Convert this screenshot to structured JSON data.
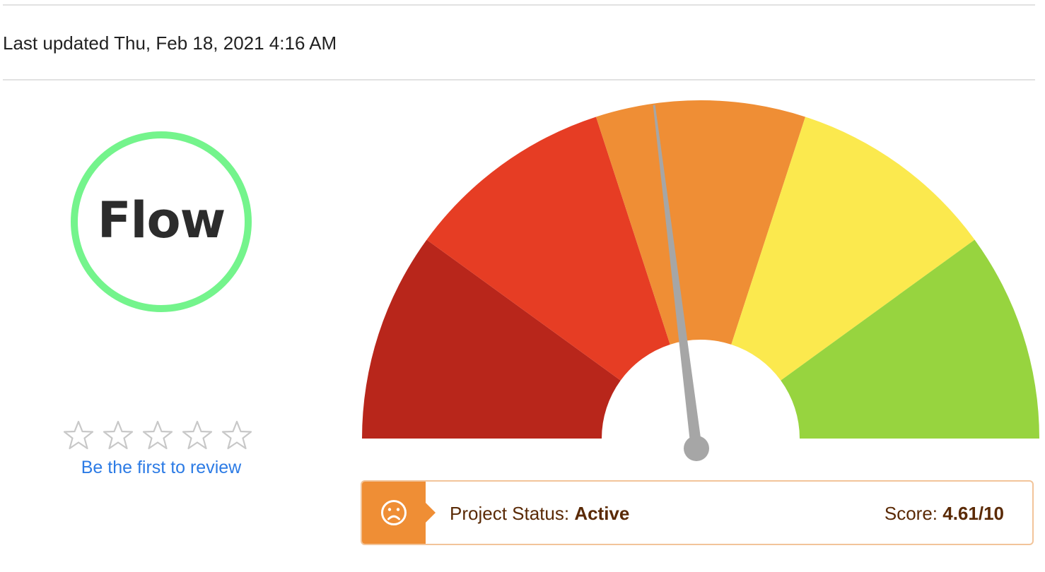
{
  "header": {
    "last_updated": "Last updated Thu, Feb 18, 2021 4:16 AM"
  },
  "logo": {
    "text": "Flow",
    "ring_color": "#74f48c"
  },
  "rating": {
    "stars_total": 5,
    "stars_filled": 0,
    "review_link": "Be the first to review"
  },
  "gauge": {
    "min": 0,
    "max": 10,
    "value": 4.61,
    "segments": [
      {
        "color": "#b8261b"
      },
      {
        "color": "#e63d24"
      },
      {
        "color": "#ef8e35"
      },
      {
        "color": "#fbe94e"
      },
      {
        "color": "#97d43f"
      }
    ],
    "needle_color": "#a6a6a6"
  },
  "status": {
    "icon": "sad-face-icon",
    "label": "Project Status: ",
    "value": "Active",
    "score_label": "Score: ",
    "score_value": "4.61/10",
    "accent_color": "#ef8e35"
  }
}
